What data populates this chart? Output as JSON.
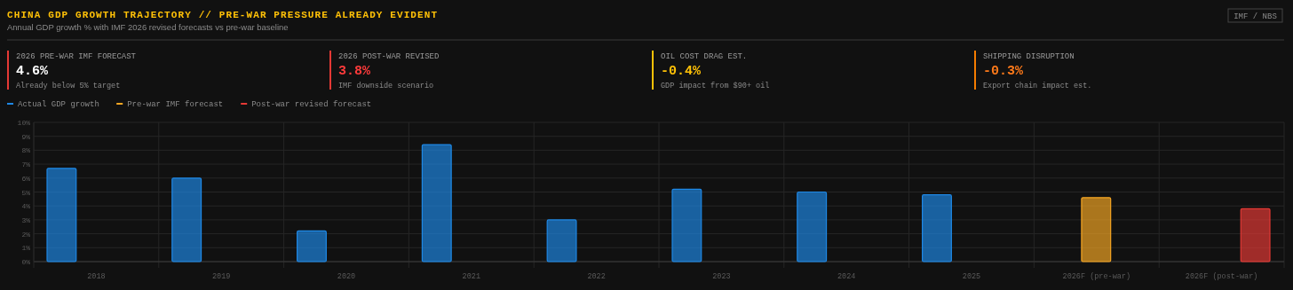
{
  "chart_data": {
    "type": "bar",
    "title": "CHINA GDP GROWTH TRAJECTORY // PRE-WAR PRESSURE ALREADY EVIDENT",
    "subtitle": "Annual GDP growth % with IMF 2026 revised forecasts vs pre-war baseline",
    "annotations": [
      "IMF / NBS",
      "2026 PRE-WAR IMF FORECAST",
      "4.6%",
      "Already below 5% target",
      "2026 POST-WAR REVISED",
      "3.8%",
      "IMF downside scenario",
      "OIL COST DRAG EST.",
      "-0.4%",
      "GDP impact from $90+ oil",
      "SHIPPING DISRUPTION",
      "-0.3%",
      "Export chain impact est."
    ],
    "categories": [
      "2018",
      "2019",
      "2020",
      "2021",
      "2022",
      "2023",
      "2024",
      "2025",
      "2026F (pre-war)",
      "2026F (post-war)"
    ],
    "series": [
      {
        "name": "Actual GDP growth",
        "color": "#1e88e5",
        "values": [
          6.7,
          6.0,
          2.2,
          8.4,
          3.0,
          5.2,
          5.0,
          4.8,
          null,
          null
        ]
      },
      {
        "name": "Pre-war IMF forecast",
        "color": "#f5a623",
        "values": [
          null,
          null,
          null,
          null,
          null,
          null,
          null,
          null,
          4.6,
          null
        ]
      },
      {
        "name": "Post-war revised forecast",
        "color": "#e53935",
        "values": [
          null,
          null,
          null,
          null,
          null,
          null,
          null,
          null,
          null,
          3.8
        ]
      }
    ],
    "ylim": [
      0,
      10
    ],
    "yticks": [
      {
        "value": 0,
        "label": "0%"
      },
      {
        "value": 1,
        "label": "1%"
      },
      {
        "value": 2,
        "label": "2%"
      },
      {
        "value": 3,
        "label": "3%"
      },
      {
        "value": 4,
        "label": "4%"
      },
      {
        "value": 5,
        "label": "5%"
      },
      {
        "value": 6,
        "label": "6%"
      },
      {
        "value": 7,
        "label": "7%"
      },
      {
        "value": 8,
        "label": "8%"
      },
      {
        "value": 9,
        "label": "9%"
      },
      {
        "value": 10,
        "label": "10%"
      }
    ],
    "grid": true,
    "legend": "top left"
  }
}
